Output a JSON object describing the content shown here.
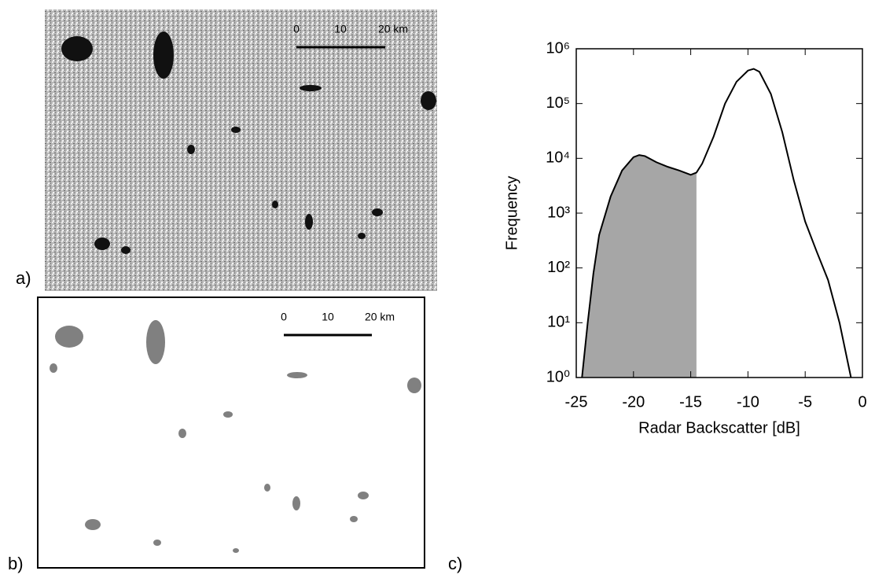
{
  "panels": {
    "a": {
      "label": "a)",
      "scale": [
        "0",
        "10",
        "20 km"
      ]
    },
    "b": {
      "label": "b)",
      "scale": [
        "0",
        "10",
        "20 km"
      ]
    },
    "c": {
      "label": "c)"
    }
  },
  "chart_data": {
    "type": "line",
    "xlabel": "Radar Backscatter [dB]",
    "ylabel": "Frequency",
    "x": [
      -24.5,
      -24,
      -23.5,
      -23,
      -22,
      -21,
      -20,
      -19.5,
      -19,
      -18,
      -17,
      -16,
      -15,
      -14.5,
      -14,
      -13,
      -12,
      -11,
      -10,
      -9.5,
      -9,
      -8,
      -7,
      -6,
      -5,
      -4,
      -3,
      -2,
      -1
    ],
    "series": [
      {
        "color": "#000000",
        "values": [
          1,
          10,
          80,
          400,
          2000,
          6000,
          10500,
          11500,
          11000,
          8500,
          7000,
          6000,
          5000,
          5500,
          8000,
          25000,
          100000,
          250000,
          400000,
          430000,
          380000,
          150000,
          30000,
          4000,
          700,
          200,
          60,
          10,
          1
        ]
      }
    ],
    "shade_below_x": -14.5,
    "shade_color": "#a6a6a6",
    "xlim": [
      -25,
      0
    ],
    "xticks": [
      -25,
      -20,
      -15,
      -10,
      -5,
      0
    ],
    "ylim": [
      1,
      1000000
    ],
    "log_y": true,
    "yticks": [
      {
        "value": 1,
        "label": "10⁰"
      },
      {
        "value": 10,
        "label": "10¹"
      },
      {
        "value": 100,
        "label": "10²"
      },
      {
        "value": 1000,
        "label": "10³"
      },
      {
        "value": 10000,
        "label": "10⁴"
      },
      {
        "value": 100000,
        "label": "10⁵"
      },
      {
        "value": 1000000,
        "label": "10⁶"
      }
    ]
  }
}
